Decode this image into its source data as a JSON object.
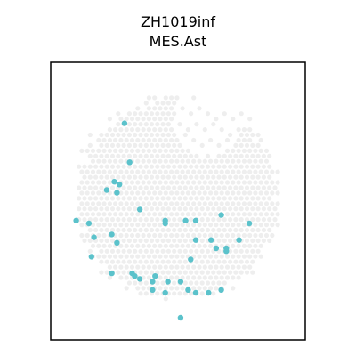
{
  "chart_data": {
    "type": "scatter",
    "title_lines": [
      "ZH1019inf",
      "MES.Ast"
    ],
    "xlabel": "",
    "ylabel": "",
    "grid": false,
    "axis_ticks": false,
    "xlim": [
      0,
      100
    ],
    "ylim": [
      0,
      100
    ],
    "background_color": "#eeeeee",
    "highlight_color": "#5bc2cb",
    "frame_color": "#000000",
    "background_shape": {
      "description": "tissue spots",
      "center": [
        50,
        51
      ],
      "radius": 40,
      "notch_center": [
        62,
        80
      ],
      "notch_radius": 14,
      "spot_spacing": 2.2
    },
    "series": [
      {
        "points": [
          [
            29,
            78
          ],
          [
            31,
            64
          ],
          [
            25,
            57
          ],
          [
            27,
            56
          ],
          [
            26,
            53
          ],
          [
            22,
            54
          ],
          [
            35,
            47
          ],
          [
            10,
            43
          ],
          [
            15,
            42
          ],
          [
            45,
            43
          ],
          [
            45,
            42
          ],
          [
            53,
            43
          ],
          [
            57,
            43
          ],
          [
            67,
            45
          ],
          [
            78,
            42
          ],
          [
            17,
            37
          ],
          [
            24,
            38
          ],
          [
            26,
            35
          ],
          [
            57,
            36
          ],
          [
            63,
            36
          ],
          [
            69,
            33
          ],
          [
            65,
            33
          ],
          [
            69,
            32
          ],
          [
            74,
            36
          ],
          [
            16,
            30
          ],
          [
            55,
            29
          ],
          [
            24,
            24
          ],
          [
            32,
            24
          ],
          [
            33,
            23
          ],
          [
            35,
            22
          ],
          [
            41,
            23
          ],
          [
            40,
            21
          ],
          [
            46,
            21
          ],
          [
            51,
            21
          ],
          [
            40,
            18
          ],
          [
            45,
            17
          ],
          [
            54,
            18
          ],
          [
            57,
            17
          ],
          [
            62,
            17
          ],
          [
            67,
            18
          ],
          [
            51,
            8
          ]
        ]
      }
    ]
  }
}
